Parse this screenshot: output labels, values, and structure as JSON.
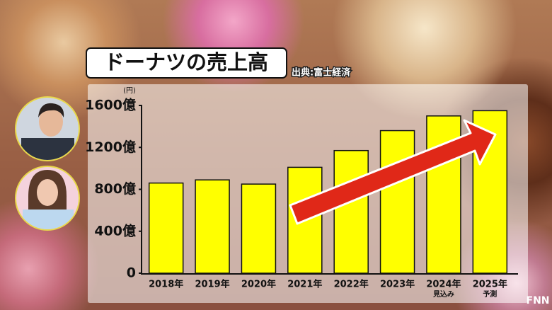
{
  "chart_data": {
    "type": "bar",
    "title": "ドーナツの売上高",
    "source": "出典:富士経済",
    "y_unit": "(円)",
    "categories": [
      "2018年",
      "2019年",
      "2020年",
      "2021年",
      "2022年",
      "2023年",
      "2024年",
      "2025年"
    ],
    "category_notes": [
      null,
      null,
      null,
      null,
      null,
      null,
      "見込み",
      "予測"
    ],
    "values": [
      860,
      890,
      850,
      1010,
      1170,
      1360,
      1500,
      1550
    ],
    "color": "#ffff00",
    "ylim": [
      0,
      1600
    ],
    "yticks": [
      0,
      {
        "value": 400,
        "label": "400億"
      },
      {
        "value": 800,
        "label": "800億"
      },
      {
        "value": 1200,
        "label": "1200億"
      },
      {
        "value": 1600,
        "label": "1600億"
      }
    ],
    "grid": false
  },
  "logo": "FNN"
}
